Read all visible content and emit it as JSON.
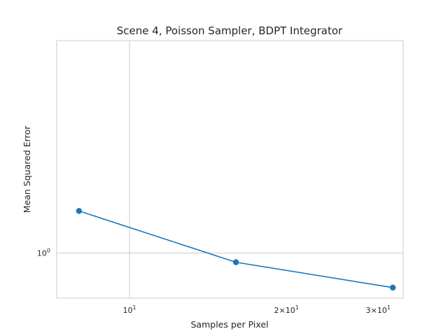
{
  "chart_data": {
    "type": "line",
    "title": "Scene 4, Poisson Sampler, BDPT Integrator",
    "xlabel": "Samples per Pixel",
    "ylabel": "Mean Squared Error",
    "xscale": "log",
    "yscale": "log",
    "xlim": [
      7.25,
      33.5
    ],
    "ylim": [
      0.865,
      1.98
    ],
    "grid": true,
    "color": "#1f77b4",
    "x_ticks": [
      {
        "value": 10,
        "base": "10",
        "exp": "1"
      },
      {
        "value": 20,
        "base": "2×10",
        "exp": "1"
      },
      {
        "value": 30,
        "base": "3×10",
        "exp": "1"
      }
    ],
    "y_ticks": [
      {
        "value": 1,
        "base": "10",
        "exp": "0"
      }
    ],
    "series": [
      {
        "x": [
          8,
          16,
          32
        ],
        "y": [
          1.145,
          0.971,
          0.895
        ]
      }
    ]
  }
}
